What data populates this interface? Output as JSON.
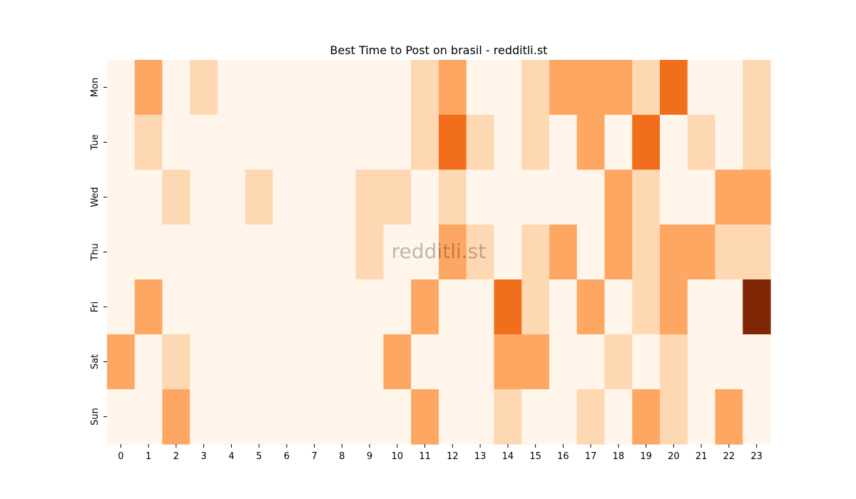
{
  "chart_data": {
    "type": "heatmap",
    "title": "Best Time to Post on brasil - redditli.st",
    "watermark": "redditli.st",
    "xlabel": "",
    "ylabel": "",
    "x_categories": [
      "0",
      "1",
      "2",
      "3",
      "4",
      "5",
      "6",
      "7",
      "8",
      "9",
      "10",
      "11",
      "12",
      "13",
      "14",
      "15",
      "16",
      "17",
      "18",
      "19",
      "20",
      "21",
      "22",
      "23"
    ],
    "y_categories": [
      "Mon",
      "Tue",
      "Wed",
      "Thu",
      "Fri",
      "Sat",
      "Sun"
    ],
    "colormap": "Oranges",
    "value_range": [
      0,
      4
    ],
    "values": [
      [
        0,
        2,
        0,
        1,
        0,
        0,
        0,
        0,
        0,
        0,
        0,
        1,
        2,
        0,
        0,
        1,
        2,
        2,
        2,
        1,
        3,
        0,
        0,
        1
      ],
      [
        0,
        1,
        0,
        0,
        0,
        0,
        0,
        0,
        0,
        0,
        0,
        1,
        3,
        1,
        0,
        1,
        0,
        2,
        0,
        3,
        0,
        1,
        0,
        1
      ],
      [
        0,
        0,
        1,
        0,
        0,
        1,
        0,
        0,
        0,
        1,
        1,
        0,
        1,
        0,
        0,
        0,
        0,
        0,
        2,
        1,
        0,
        0,
        2,
        2
      ],
      [
        0,
        0,
        0,
        0,
        0,
        0,
        0,
        0,
        0,
        1,
        0,
        0,
        2,
        1,
        0,
        1,
        2,
        0,
        2,
        1,
        2,
        2,
        1,
        1
      ],
      [
        0,
        2,
        0,
        0,
        0,
        0,
        0,
        0,
        0,
        0,
        0,
        2,
        0,
        0,
        3,
        1,
        0,
        2,
        0,
        1,
        2,
        0,
        0,
        4
      ],
      [
        2,
        0,
        1,
        0,
        0,
        0,
        0,
        0,
        0,
        0,
        2,
        0,
        0,
        0,
        2,
        2,
        0,
        0,
        1,
        0,
        1,
        0,
        0,
        0
      ],
      [
        0,
        0,
        2,
        0,
        0,
        0,
        0,
        0,
        0,
        0,
        0,
        2,
        0,
        0,
        1,
        0,
        0,
        1,
        0,
        2,
        1,
        0,
        2,
        0
      ]
    ],
    "level_colors": [
      "#fff5eb",
      "#fdd8b2",
      "#fda762",
      "#f16f1c",
      "#7f2704"
    ],
    "grid": false,
    "legend": "none"
  }
}
